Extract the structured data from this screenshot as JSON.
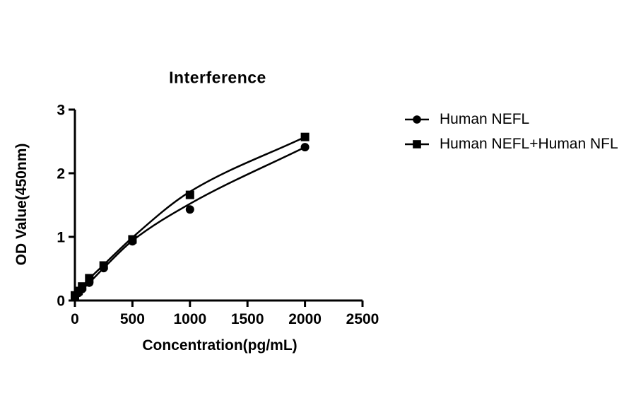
{
  "page": {
    "background_color": "#ffffff",
    "text_color": "#000000"
  },
  "chart_data": {
    "type": "scatter",
    "title": "Interference",
    "xlabel": "Concentration(pg/mL)",
    "ylabel": "OD Value(450nm)",
    "xlim": [
      0,
      2500
    ],
    "ylim": [
      0,
      3
    ],
    "xticks": [
      0,
      500,
      1000,
      1500,
      2000,
      2500
    ],
    "yticks": [
      0,
      1,
      2,
      3
    ],
    "grid": false,
    "legend_position": "right-of-plot",
    "axis_color": "#000000",
    "x": [
      0,
      31.25,
      62.5,
      125,
      250,
      500,
      1000,
      2000
    ],
    "series": [
      {
        "name": "Human NEFL",
        "marker": "circle",
        "color": "#000000",
        "values": [
          0.06,
          0.12,
          0.18,
          0.28,
          0.51,
          0.93,
          1.43,
          2.41
        ],
        "fit_curve_values": [
          0.05,
          0.11,
          0.17,
          0.28,
          0.51,
          0.94,
          1.52,
          2.41
        ]
      },
      {
        "name": "Human NEFL+Human NFL",
        "marker": "square",
        "color": "#000000",
        "values": [
          0.08,
          0.15,
          0.22,
          0.35,
          0.55,
          0.96,
          1.66,
          2.57
        ],
        "fit_curve_values": [
          0.07,
          0.14,
          0.21,
          0.34,
          0.56,
          0.99,
          1.71,
          2.57
        ]
      }
    ]
  }
}
